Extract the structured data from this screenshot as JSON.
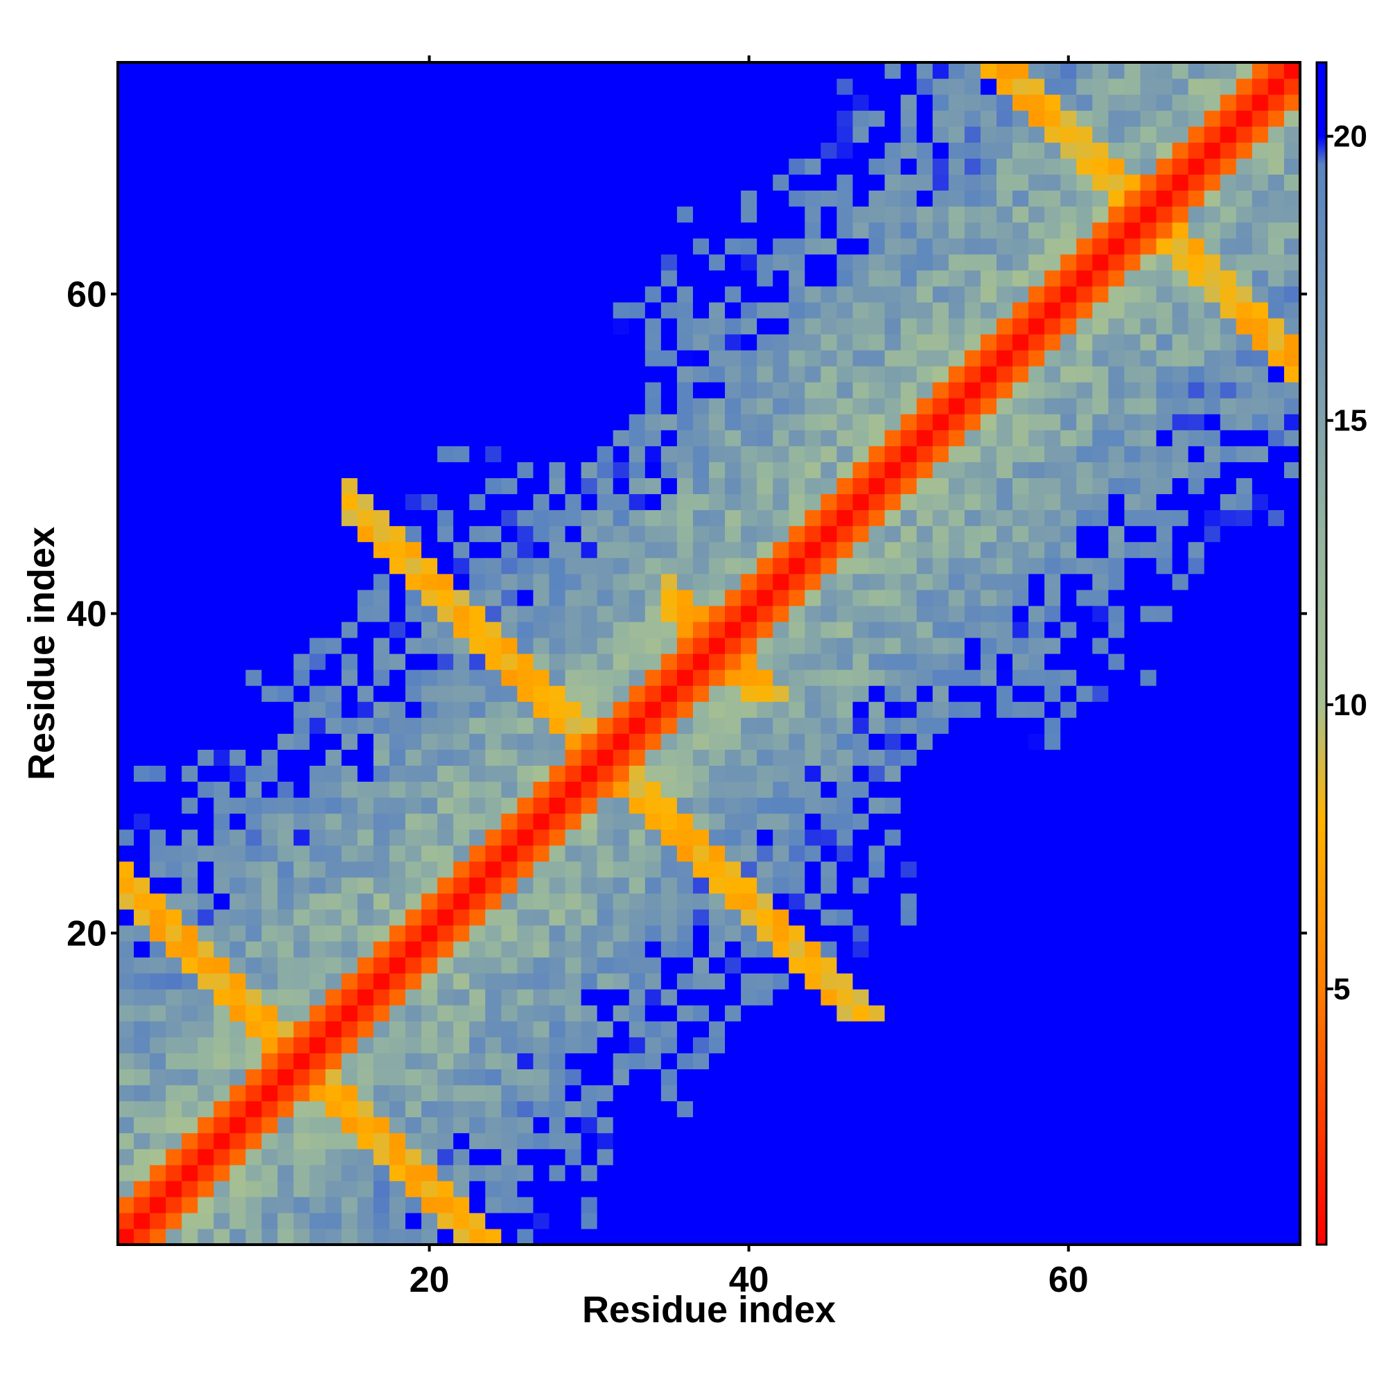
{
  "chart_data": {
    "type": "heatmap",
    "title": "",
    "xlabel": "Residue index",
    "ylabel": "Residue index",
    "n": 74,
    "xlim": [
      0.5,
      74.5
    ],
    "ylim": [
      0.5,
      74.5
    ],
    "x_ticks": [
      20,
      40,
      60
    ],
    "y_ticks": [
      20,
      40,
      60
    ],
    "colorbar": {
      "ticks": [
        5,
        10,
        15,
        20
      ],
      "range": [
        0.5,
        21.3
      ],
      "stops": [
        {
          "value": 0.5,
          "color": "#ff0000"
        },
        {
          "value": 5.0,
          "color": "#ff7e00"
        },
        {
          "value": 8.0,
          "color": "#ffb300"
        },
        {
          "value": 10.0,
          "color": "#a8c090"
        },
        {
          "value": 13.0,
          "color": "#94b4a0"
        },
        {
          "value": 16.0,
          "color": "#7799b0"
        },
        {
          "value": 19.5,
          "color": "#5a84c0"
        },
        {
          "value": 20.0,
          "color": "#0000ff"
        }
      ]
    },
    "encoding": "symmetric residue-residue distance map",
    "colors": {
      "contact": "#ff0000",
      "near": "#ffa500",
      "far": "#0000ff"
    },
    "diagonal_value": 0
  }
}
